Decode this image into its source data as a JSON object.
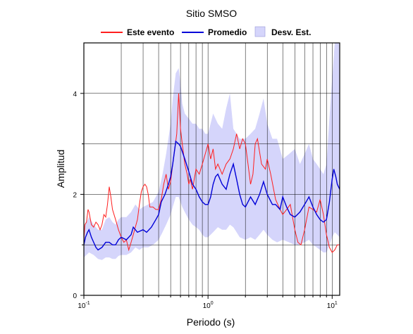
{
  "chart_data": {
    "type": "line",
    "title": "Sitio SMSO",
    "xlabel": "Periodo (s)",
    "ylabel": "Amplitud",
    "x_scale": "log",
    "xlim": [
      0.1,
      11.5
    ],
    "ylim": [
      0,
      5
    ],
    "x_ticks": [
      {
        "value": 0.1,
        "base": "10",
        "exp": "-1"
      },
      {
        "value": 1,
        "base": "10",
        "exp": "0"
      },
      {
        "value": 10,
        "base": "10",
        "exp": "1"
      }
    ],
    "y_ticks": [
      0,
      2,
      4
    ],
    "grid": true,
    "legend_position": "top",
    "legend": [
      {
        "label": "Este evento",
        "kind": "line",
        "color": "#ff1f1f"
      },
      {
        "label": "Promedio",
        "kind": "line",
        "color": "#0000d8"
      },
      {
        "label": "Desv. Est.",
        "kind": "band",
        "color": "#d5d5fb"
      }
    ],
    "series": [
      {
        "name": "Este evento",
        "color": "#ff1f1f",
        "points": [
          [
            0.1,
            1.1
          ],
          [
            0.102,
            1.4
          ],
          [
            0.105,
            1.45
          ],
          [
            0.108,
            1.7
          ],
          [
            0.11,
            1.65
          ],
          [
            0.115,
            1.4
          ],
          [
            0.12,
            1.35
          ],
          [
            0.125,
            1.45
          ],
          [
            0.13,
            1.4
          ],
          [
            0.135,
            1.3
          ],
          [
            0.14,
            1.4
          ],
          [
            0.145,
            1.6
          ],
          [
            0.15,
            1.55
          ],
          [
            0.155,
            1.8
          ],
          [
            0.16,
            2.15
          ],
          [
            0.165,
            1.95
          ],
          [
            0.17,
            1.7
          ],
          [
            0.18,
            1.5
          ],
          [
            0.19,
            1.3
          ],
          [
            0.2,
            1.15
          ],
          [
            0.21,
            1.05
          ],
          [
            0.22,
            1.1
          ],
          [
            0.23,
            0.9
          ],
          [
            0.24,
            1.05
          ],
          [
            0.25,
            1.2
          ],
          [
            0.27,
            1.5
          ],
          [
            0.28,
            1.8
          ],
          [
            0.29,
            2.05
          ],
          [
            0.3,
            2.15
          ],
          [
            0.31,
            2.2
          ],
          [
            0.32,
            2.15
          ],
          [
            0.33,
            2.0
          ],
          [
            0.34,
            1.75
          ],
          [
            0.36,
            1.75
          ],
          [
            0.38,
            1.7
          ],
          [
            0.4,
            1.7
          ],
          [
            0.42,
            1.9
          ],
          [
            0.44,
            2.2
          ],
          [
            0.46,
            2.4
          ],
          [
            0.48,
            2.1
          ],
          [
            0.5,
            2.25
          ],
          [
            0.52,
            2.6
          ],
          [
            0.54,
            2.9
          ],
          [
            0.56,
            3.2
          ],
          [
            0.58,
            4.0
          ],
          [
            0.6,
            3.3
          ],
          [
            0.62,
            3.0
          ],
          [
            0.65,
            2.6
          ],
          [
            0.68,
            2.4
          ],
          [
            0.7,
            2.2
          ],
          [
            0.72,
            2.3
          ],
          [
            0.75,
            2.1
          ],
          [
            0.8,
            2.5
          ],
          [
            0.85,
            2.4
          ],
          [
            0.9,
            2.6
          ],
          [
            0.95,
            2.8
          ],
          [
            1.0,
            3.0
          ],
          [
            1.05,
            2.7
          ],
          [
            1.1,
            2.9
          ],
          [
            1.15,
            2.5
          ],
          [
            1.2,
            2.6
          ],
          [
            1.3,
            2.4
          ],
          [
            1.4,
            2.6
          ],
          [
            1.5,
            2.7
          ],
          [
            1.6,
            2.9
          ],
          [
            1.7,
            3.2
          ],
          [
            1.8,
            2.9
          ],
          [
            1.9,
            3.1
          ],
          [
            2.0,
            3.0
          ],
          [
            2.1,
            2.6
          ],
          [
            2.2,
            2.2
          ],
          [
            2.3,
            2.4
          ],
          [
            2.4,
            3.0
          ],
          [
            2.5,
            3.1
          ],
          [
            2.7,
            2.6
          ],
          [
            2.9,
            2.5
          ],
          [
            3.0,
            2.7
          ],
          [
            3.2,
            2.4
          ],
          [
            3.5,
            1.9
          ],
          [
            3.8,
            1.7
          ],
          [
            4.0,
            1.6
          ],
          [
            4.3,
            1.7
          ],
          [
            4.6,
            1.8
          ],
          [
            5.0,
            1.3
          ],
          [
            5.3,
            1.05
          ],
          [
            5.6,
            1.0
          ],
          [
            6.0,
            1.3
          ],
          [
            6.5,
            1.75
          ],
          [
            7.0,
            1.7
          ],
          [
            7.5,
            1.65
          ],
          [
            8.0,
            1.9
          ],
          [
            8.5,
            1.6
          ],
          [
            9.0,
            1.2
          ],
          [
            9.5,
            0.95
          ],
          [
            10.0,
            0.85
          ],
          [
            10.5,
            0.9
          ],
          [
            11.0,
            1.0
          ],
          [
            11.5,
            1.0
          ]
        ]
      },
      {
        "name": "Promedio",
        "color": "#0000d8",
        "points": [
          [
            0.1,
            1.0
          ],
          [
            0.103,
            1.15
          ],
          [
            0.107,
            1.25
          ],
          [
            0.11,
            1.3
          ],
          [
            0.115,
            1.15
          ],
          [
            0.12,
            1.05
          ],
          [
            0.125,
            0.95
          ],
          [
            0.13,
            0.9
          ],
          [
            0.14,
            0.95
          ],
          [
            0.15,
            1.05
          ],
          [
            0.16,
            1.05
          ],
          [
            0.17,
            1.0
          ],
          [
            0.18,
            1.0
          ],
          [
            0.19,
            1.1
          ],
          [
            0.2,
            1.15
          ],
          [
            0.22,
            1.1
          ],
          [
            0.24,
            1.2
          ],
          [
            0.25,
            1.35
          ],
          [
            0.27,
            1.25
          ],
          [
            0.3,
            1.3
          ],
          [
            0.32,
            1.25
          ],
          [
            0.35,
            1.35
          ],
          [
            0.38,
            1.5
          ],
          [
            0.4,
            1.6
          ],
          [
            0.42,
            1.85
          ],
          [
            0.45,
            2.0
          ],
          [
            0.48,
            2.2
          ],
          [
            0.5,
            2.35
          ],
          [
            0.52,
            2.6
          ],
          [
            0.55,
            3.05
          ],
          [
            0.58,
            3.0
          ],
          [
            0.6,
            2.95
          ],
          [
            0.62,
            2.85
          ],
          [
            0.65,
            2.7
          ],
          [
            0.7,
            2.45
          ],
          [
            0.75,
            2.2
          ],
          [
            0.8,
            2.1
          ],
          [
            0.85,
            1.95
          ],
          [
            0.9,
            1.85
          ],
          [
            0.95,
            1.8
          ],
          [
            1.0,
            1.8
          ],
          [
            1.05,
            1.95
          ],
          [
            1.1,
            2.2
          ],
          [
            1.15,
            2.35
          ],
          [
            1.2,
            2.4
          ],
          [
            1.3,
            2.2
          ],
          [
            1.4,
            2.1
          ],
          [
            1.5,
            2.4
          ],
          [
            1.6,
            2.6
          ],
          [
            1.7,
            2.3
          ],
          [
            1.8,
            2.0
          ],
          [
            1.9,
            1.8
          ],
          [
            2.0,
            1.75
          ],
          [
            2.2,
            1.95
          ],
          [
            2.4,
            1.8
          ],
          [
            2.6,
            2.0
          ],
          [
            2.8,
            2.25
          ],
          [
            3.0,
            2.0
          ],
          [
            3.3,
            1.8
          ],
          [
            3.5,
            1.8
          ],
          [
            3.8,
            1.7
          ],
          [
            4.0,
            1.95
          ],
          [
            4.3,
            1.75
          ],
          [
            4.6,
            1.6
          ],
          [
            5.0,
            1.55
          ],
          [
            5.5,
            1.65
          ],
          [
            6.0,
            1.8
          ],
          [
            6.5,
            1.95
          ],
          [
            7.0,
            1.75
          ],
          [
            7.5,
            1.6
          ],
          [
            8.0,
            1.5
          ],
          [
            8.5,
            1.45
          ],
          [
            9.0,
            1.5
          ],
          [
            9.5,
            1.85
          ],
          [
            10.0,
            2.3
          ],
          [
            10.3,
            2.5
          ],
          [
            10.7,
            2.35
          ],
          [
            11.0,
            2.2
          ],
          [
            11.5,
            2.1
          ]
        ]
      }
    ],
    "band": {
      "name": "Desv. Est.",
      "color": "#d5d5fb",
      "upper": [
        [
          0.1,
          1.35
        ],
        [
          0.11,
          1.55
        ],
        [
          0.12,
          1.4
        ],
        [
          0.13,
          1.3
        ],
        [
          0.14,
          1.3
        ],
        [
          0.15,
          1.5
        ],
        [
          0.16,
          1.55
        ],
        [
          0.17,
          1.45
        ],
        [
          0.18,
          1.4
        ],
        [
          0.19,
          1.5
        ],
        [
          0.2,
          1.55
        ],
        [
          0.22,
          1.55
        ],
        [
          0.24,
          1.65
        ],
        [
          0.26,
          1.8
        ],
        [
          0.28,
          1.7
        ],
        [
          0.3,
          1.75
        ],
        [
          0.33,
          1.8
        ],
        [
          0.36,
          1.85
        ],
        [
          0.4,
          2.05
        ],
        [
          0.43,
          2.4
        ],
        [
          0.46,
          2.8
        ],
        [
          0.5,
          3.4
        ],
        [
          0.52,
          3.9
        ],
        [
          0.55,
          4.4
        ],
        [
          0.58,
          4.5
        ],
        [
          0.6,
          4.2
        ],
        [
          0.62,
          3.8
        ],
        [
          0.65,
          3.6
        ],
        [
          0.7,
          3.5
        ],
        [
          0.75,
          3.4
        ],
        [
          0.8,
          3.4
        ],
        [
          0.85,
          3.3
        ],
        [
          0.9,
          3.3
        ],
        [
          0.95,
          3.2
        ],
        [
          1.0,
          3.2
        ],
        [
          1.1,
          3.6
        ],
        [
          1.2,
          3.4
        ],
        [
          1.3,
          3.3
        ],
        [
          1.4,
          3.7
        ],
        [
          1.5,
          4.0
        ],
        [
          1.6,
          3.3
        ],
        [
          1.7,
          3.2
        ],
        [
          1.8,
          3.1
        ],
        [
          2.0,
          3.1
        ],
        [
          2.2,
          3.2
        ],
        [
          2.4,
          3.3
        ],
        [
          2.6,
          3.6
        ],
        [
          2.8,
          3.9
        ],
        [
          3.0,
          3.4
        ],
        [
          3.3,
          3.1
        ],
        [
          3.6,
          3.1
        ],
        [
          4.0,
          2.7
        ],
        [
          4.5,
          2.8
        ],
        [
          5.0,
          2.9
        ],
        [
          5.5,
          2.6
        ],
        [
          6.0,
          2.8
        ],
        [
          6.5,
          3.0
        ],
        [
          7.0,
          2.7
        ],
        [
          7.5,
          2.6
        ],
        [
          8.0,
          2.5
        ],
        [
          8.5,
          2.4
        ],
        [
          9.0,
          2.6
        ],
        [
          9.5,
          3.5
        ],
        [
          10.0,
          4.3
        ],
        [
          10.5,
          5.0
        ],
        [
          11.0,
          5.0
        ],
        [
          11.5,
          5.0
        ]
      ],
      "lower": [
        [
          0.1,
          0.75
        ],
        [
          0.11,
          0.85
        ],
        [
          0.12,
          0.8
        ],
        [
          0.13,
          0.72
        ],
        [
          0.14,
          0.7
        ],
        [
          0.15,
          0.75
        ],
        [
          0.16,
          0.75
        ],
        [
          0.17,
          0.72
        ],
        [
          0.18,
          0.72
        ],
        [
          0.19,
          0.78
        ],
        [
          0.2,
          0.8
        ],
        [
          0.22,
          0.8
        ],
        [
          0.24,
          0.85
        ],
        [
          0.26,
          0.95
        ],
        [
          0.28,
          0.9
        ],
        [
          0.3,
          0.95
        ],
        [
          0.33,
          0.95
        ],
        [
          0.36,
          1.0
        ],
        [
          0.4,
          1.1
        ],
        [
          0.43,
          1.25
        ],
        [
          0.46,
          1.4
        ],
        [
          0.5,
          1.6
        ],
        [
          0.52,
          1.75
        ],
        [
          0.55,
          1.95
        ],
        [
          0.58,
          1.95
        ],
        [
          0.6,
          1.85
        ],
        [
          0.62,
          1.75
        ],
        [
          0.65,
          1.65
        ],
        [
          0.7,
          1.5
        ],
        [
          0.75,
          1.4
        ],
        [
          0.8,
          1.35
        ],
        [
          0.85,
          1.3
        ],
        [
          0.9,
          1.2
        ],
        [
          0.95,
          1.15
        ],
        [
          1.0,
          1.15
        ],
        [
          1.1,
          1.25
        ],
        [
          1.2,
          1.35
        ],
        [
          1.3,
          1.3
        ],
        [
          1.4,
          1.3
        ],
        [
          1.5,
          1.4
        ],
        [
          1.6,
          1.35
        ],
        [
          1.7,
          1.25
        ],
        [
          1.8,
          1.15
        ],
        [
          2.0,
          1.1
        ],
        [
          2.2,
          1.15
        ],
        [
          2.4,
          1.1
        ],
        [
          2.6,
          1.2
        ],
        [
          2.8,
          1.3
        ],
        [
          3.0,
          1.2
        ],
        [
          3.3,
          1.1
        ],
        [
          3.6,
          1.05
        ],
        [
          4.0,
          1.1
        ],
        [
          4.5,
          1.05
        ],
        [
          5.0,
          1.0
        ],
        [
          5.5,
          1.0
        ],
        [
          6.0,
          1.05
        ],
        [
          6.5,
          1.1
        ],
        [
          7.0,
          1.0
        ],
        [
          7.5,
          0.95
        ],
        [
          8.0,
          0.9
        ],
        [
          8.5,
          0.85
        ],
        [
          9.0,
          0.85
        ],
        [
          9.5,
          1.0
        ],
        [
          10.0,
          1.15
        ],
        [
          10.5,
          1.25
        ],
        [
          11.0,
          1.2
        ],
        [
          11.5,
          1.15
        ]
      ]
    }
  }
}
